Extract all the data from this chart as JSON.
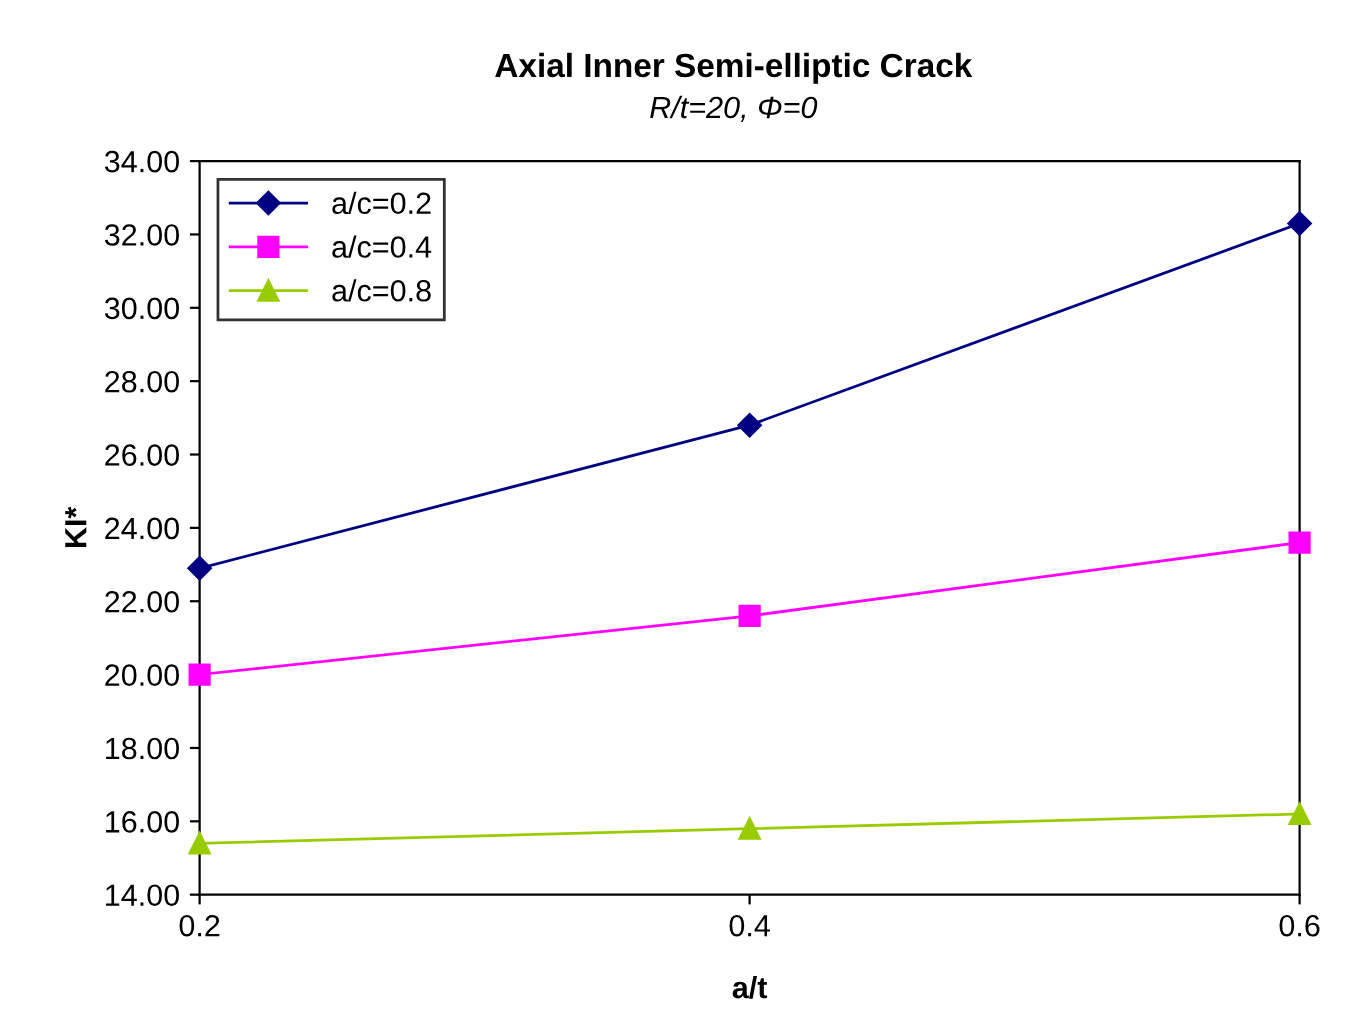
{
  "chart_data": {
    "type": "line",
    "title": "Axial Inner Semi-elliptic Crack",
    "subtitle": "R/t=20, Φ=0",
    "xlabel": "a/t",
    "ylabel": "KI*",
    "x": [
      0.2,
      0.4,
      0.6
    ],
    "series": [
      {
        "name": "a/c=0.2",
        "color": "#000080",
        "values": [
          22.9,
          26.8,
          32.3
        ],
        "marker": "diamond"
      },
      {
        "name": "a/c=0.4",
        "color": "#ff00ff",
        "values": [
          20.0,
          21.6,
          23.6
        ],
        "marker": "square"
      },
      {
        "name": "a/c=0.8",
        "color": "#99cc00",
        "values": [
          15.4,
          15.8,
          16.2
        ],
        "marker": "triangle"
      }
    ],
    "xlim": [
      0.2,
      0.6
    ],
    "xticks": [
      0.2,
      0.4,
      0.6
    ],
    "ylim": [
      14,
      34
    ],
    "yticks": [
      {
        "value": 14,
        "label": "14.00"
      },
      {
        "value": 16,
        "label": "16.00"
      },
      {
        "value": 18,
        "label": "18.00"
      },
      {
        "value": 20,
        "label": "20.00"
      },
      {
        "value": 22,
        "label": "22.00"
      },
      {
        "value": 24,
        "label": "24.00"
      },
      {
        "value": 26,
        "label": "26.00"
      },
      {
        "value": 28,
        "label": "28.00"
      },
      {
        "value": 30,
        "label": "30.00"
      },
      {
        "value": 32,
        "label": "32.00"
      },
      {
        "value": 34,
        "label": "34.00"
      }
    ],
    "grid": false,
    "legend": "top left",
    "line_style": "solid"
  }
}
